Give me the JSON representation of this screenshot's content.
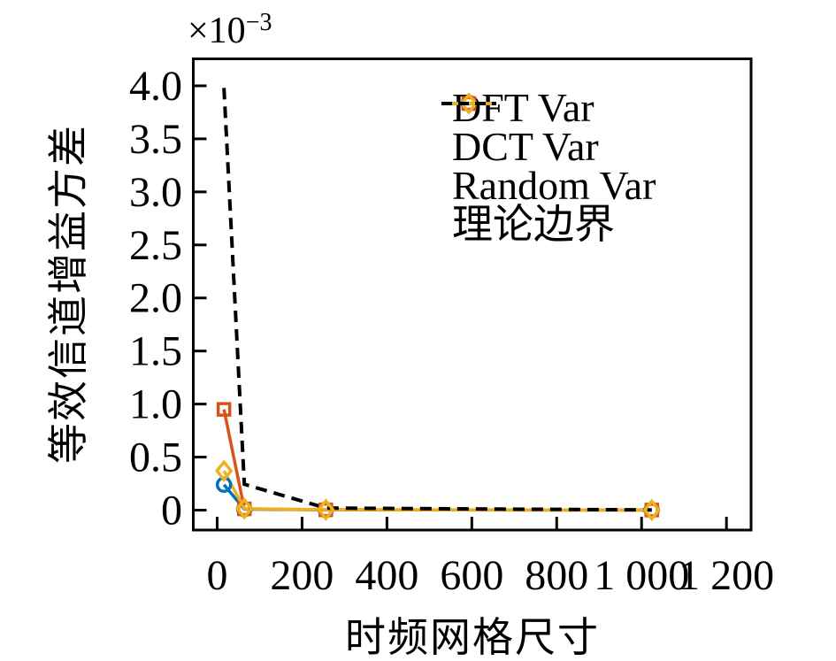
{
  "figure": {
    "offset_base": "×10",
    "offset_exp": "−3",
    "xlabel": "时频网格尺寸",
    "ylabel": "等效信道增益方差",
    "background": "#ffffff"
  },
  "chart_data": {
    "type": "line",
    "title": "",
    "xlabel": "时频网格尺寸",
    "ylabel": "等效信道增益方差",
    "y_offset_label": "×10⁻³",
    "y_unit_multiplier": 0.001,
    "x": [
      16,
      64,
      256,
      1024
    ],
    "series": [
      {
        "name": "DFT Var",
        "color": "#0072BD",
        "marker": "circle",
        "linestyle": "solid",
        "values_x1e3": [
          0.24,
          0.01,
          0.003,
          0.001
        ]
      },
      {
        "name": "DCT Var",
        "color": "#D95319",
        "marker": "square",
        "linestyle": "solid",
        "values_x1e3": [
          0.95,
          0.012,
          0.003,
          0.001
        ]
      },
      {
        "name": "Random Var",
        "color": "#EDB120",
        "marker": "diamond",
        "linestyle": "solid",
        "values_x1e3": [
          0.37,
          0.015,
          0.004,
          0.001
        ]
      },
      {
        "name": "理论边界",
        "color": "#000000",
        "marker": "none",
        "linestyle": "dashed",
        "values_x1e3": [
          3.98,
          0.244,
          0.02,
          0.002
        ]
      }
    ],
    "x_ticks": {
      "values": [
        0,
        200,
        400,
        600,
        800,
        1000,
        1200
      ],
      "labels": [
        "0",
        "200",
        "400",
        "600",
        "800",
        "1 000",
        "1 200"
      ]
    },
    "y_ticks": {
      "values_x1e3": [
        0,
        0.5,
        1.0,
        1.5,
        2.0,
        2.5,
        3.0,
        3.5,
        4.0
      ],
      "labels": [
        "0",
        "0.5",
        "1.0",
        "1.5",
        "2.0",
        "2.5",
        "3.0",
        "3.5",
        "4.0"
      ]
    },
    "xlim": [
      -56.25,
      1258
    ],
    "ylim_x1e3": [
      -0.1875,
      4.2542
    ],
    "grid": false,
    "legend": {
      "position": "upper-right-inside",
      "frame": false
    }
  }
}
